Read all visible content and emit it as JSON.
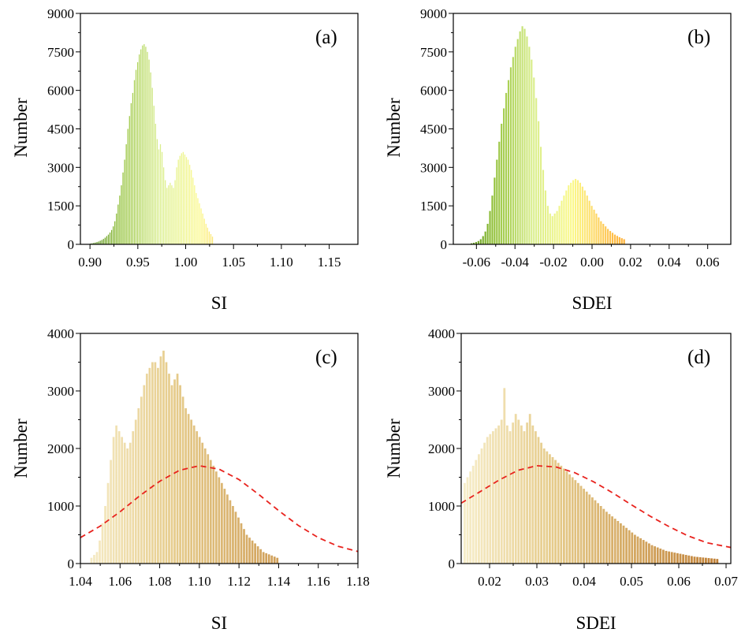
{
  "chart_data": [
    {
      "type": "bar",
      "panel_label": "(a)",
      "xlabel": "SI",
      "ylabel": "Number",
      "xlim": [
        0.89,
        1.18
      ],
      "ylim": [
        0,
        9000
      ],
      "xticks": [
        0.9,
        0.95,
        1.0,
        1.05,
        1.1,
        1.15
      ],
      "xtick_labels": [
        "0.90",
        "0.95",
        "1.00",
        "1.05",
        "1.10",
        "1.15"
      ],
      "yticks": [
        0,
        1500,
        3000,
        4500,
        6000,
        7500,
        9000
      ],
      "ytick_labels": [
        "0",
        "1500",
        "3000",
        "4500",
        "6000",
        "7500",
        "9000"
      ],
      "colors": [
        "#3d7a12",
        "#8fbf35",
        "#d9ee8c",
        "#fbf98a",
        "#ffc04a",
        "#ff8a00",
        "#c86000",
        "#5a2e05"
      ],
      "bin_width": 0.0017,
      "series": [
        {
          "x_start": 0.9,
          "values": [
            30,
            40,
            55,
            70,
            90,
            110,
            140,
            170,
            210,
            260,
            320,
            380,
            460,
            560,
            700,
            900,
            1200,
            1550,
            1900,
            2300,
            2800,
            3300,
            3900,
            4500,
            5000,
            5500,
            5900,
            6400,
            6800,
            7100,
            7400,
            7600,
            7750,
            7800,
            7700,
            7500,
            7200,
            6700,
            6100,
            5400,
            4700,
            4100,
            3700,
            3900,
            3600,
            3000,
            2500,
            2200,
            2300,
            2400,
            2300,
            2200,
            2500,
            3000,
            3300,
            3450,
            3550,
            3600,
            3500,
            3400,
            3300,
            3100,
            2900,
            2600,
            2300,
            2000,
            1800,
            1600,
            1400,
            1200,
            1000,
            800,
            650,
            500,
            400,
            300
          ]
        }
      ]
    },
    {
      "type": "bar",
      "panel_label": "(b)",
      "xlabel": "SDEI",
      "ylabel": "Number",
      "xlim": [
        -0.072,
        0.072
      ],
      "ylim": [
        0,
        9000
      ],
      "xticks": [
        -0.06,
        -0.04,
        -0.02,
        0.0,
        0.02,
        0.04,
        0.06
      ],
      "xtick_labels": [
        "-0.06",
        "-0.04",
        "-0.02",
        "0.00",
        "0.02",
        "0.04",
        "0.06"
      ],
      "yticks": [
        0,
        1500,
        3000,
        4500,
        6000,
        7500,
        9000
      ],
      "ytick_labels": [
        "0",
        "1500",
        "3000",
        "4500",
        "6000",
        "7500",
        "9000"
      ],
      "colors": [
        "#3d7a12",
        "#8fbf35",
        "#d9ee8c",
        "#fbf98a",
        "#ffc04a",
        "#ff8a00",
        "#c86000",
        "#5a2e05"
      ],
      "bin_width": 0.0012,
      "series": [
        {
          "x_start": -0.063,
          "values": [
            40,
            60,
            90,
            130,
            200,
            320,
            500,
            800,
            1300,
            1900,
            2600,
            3300,
            4000,
            4700,
            5300,
            5900,
            6400,
            6900,
            7300,
            7700,
            8000,
            8300,
            8500,
            8400,
            8100,
            7700,
            7200,
            6500,
            5700,
            4800,
            3800,
            2900,
            2100,
            1500,
            1200,
            1100,
            1200,
            1300,
            1500,
            1700,
            1900,
            2100,
            2300,
            2400,
            2500,
            2550,
            2500,
            2400,
            2250,
            2100,
            1900,
            1700,
            1500,
            1350,
            1200,
            1050,
            900,
            800,
            700,
            600,
            520,
            450,
            380,
            330,
            280,
            240,
            200
          ]
        }
      ]
    },
    {
      "type": "bar",
      "panel_label": "(c)",
      "xlabel": "SI",
      "ylabel": "Number",
      "xlim": [
        1.04,
        1.18
      ],
      "ylim": [
        0,
        4000
      ],
      "xticks": [
        1.04,
        1.06,
        1.08,
        1.1,
        1.12,
        1.14,
        1.16,
        1.18
      ],
      "xtick_labels": [
        "1.04",
        "1.06",
        "1.08",
        "1.10",
        "1.12",
        "1.14",
        "1.16",
        "1.18"
      ],
      "yticks": [
        0,
        1000,
        2000,
        3000,
        4000
      ],
      "ytick_labels": [
        "0",
        "1000",
        "2000",
        "3000",
        "4000"
      ],
      "colors": [
        "#f7eecb",
        "#e6cc8c",
        "#d2a45e",
        "#bd7a30"
      ],
      "bin_width": 0.0014,
      "series": [
        {
          "x_start": 1.045,
          "values": [
            100,
            150,
            200,
            400,
            700,
            1000,
            1400,
            1800,
            2200,
            2400,
            2300,
            2200,
            2100,
            2000,
            2100,
            2300,
            2500,
            2700,
            2900,
            3100,
            3300,
            3400,
            3500,
            3500,
            3400,
            3600,
            3700,
            3500,
            3300,
            3100,
            3200,
            3300,
            3100,
            2900,
            2700,
            2600,
            2500,
            2400,
            2300,
            2200,
            2100,
            2000,
            1900,
            1800,
            1700,
            1600,
            1500,
            1400,
            1300,
            1200,
            1100,
            1000,
            900,
            800,
            700,
            600,
            500,
            450,
            400,
            350,
            300,
            250,
            200,
            180,
            160,
            140,
            120,
            100
          ]
        },
        {
          "name": "",
          "type": "line",
          "x": [
            1.04,
            1.05,
            1.06,
            1.07,
            1.08,
            1.09,
            1.1,
            1.11,
            1.12,
            1.13,
            1.14,
            1.15,
            1.16,
            1.17,
            1.18
          ],
          "values": [
            450,
            650,
            900,
            1180,
            1430,
            1620,
            1700,
            1640,
            1460,
            1200,
            920,
            660,
            450,
            300,
            210
          ]
        }
      ]
    },
    {
      "type": "bar",
      "panel_label": "(d)",
      "xlabel": "SDEI",
      "ylabel": "Number",
      "xlim": [
        0.014,
        0.071
      ],
      "ylim": [
        0,
        4000
      ],
      "xticks": [
        0.02,
        0.03,
        0.04,
        0.05,
        0.06,
        0.07
      ],
      "xtick_labels": [
        "0.02",
        "0.03",
        "0.04",
        "0.05",
        "0.06",
        "0.07"
      ],
      "yticks": [
        0,
        1000,
        2000,
        3000,
        4000
      ],
      "ytick_labels": [
        "0",
        "1000",
        "2000",
        "3000",
        "4000"
      ],
      "colors": [
        "#f7eecb",
        "#e6cc8c",
        "#d2a45e",
        "#bd7a30"
      ],
      "bin_width": 0.0006,
      "series": [
        {
          "x_start": 0.0145,
          "values": [
            1400,
            1500,
            1600,
            1700,
            1800,
            1900,
            2000,
            2100,
            2200,
            2250,
            2300,
            2350,
            2400,
            2500,
            3050,
            2400,
            2300,
            2450,
            2600,
            2500,
            2400,
            2300,
            2450,
            2600,
            2400,
            2300,
            2200,
            2100,
            2000,
            1950,
            1900,
            1850,
            1800,
            1750,
            1700,
            1650,
            1600,
            1550,
            1500,
            1450,
            1400,
            1350,
            1300,
            1250,
            1200,
            1150,
            1100,
            1050,
            1000,
            950,
            900,
            860,
            820,
            780,
            740,
            700,
            660,
            620,
            580,
            540,
            500,
            470,
            440,
            410,
            380,
            350,
            320,
            300,
            280,
            260,
            240,
            220,
            210,
            200,
            190,
            180,
            170,
            160,
            150,
            140,
            130,
            120,
            115,
            110,
            105,
            100,
            95,
            90,
            85,
            80
          ]
        },
        {
          "name": "",
          "type": "line",
          "x": [
            0.014,
            0.018,
            0.022,
            0.026,
            0.03,
            0.034,
            0.038,
            0.042,
            0.046,
            0.05,
            0.054,
            0.058,
            0.062,
            0.066,
            0.071
          ],
          "values": [
            1050,
            1250,
            1450,
            1620,
            1700,
            1680,
            1580,
            1420,
            1230,
            1020,
            820,
            640,
            480,
            360,
            280
          ]
        }
      ]
    }
  ]
}
